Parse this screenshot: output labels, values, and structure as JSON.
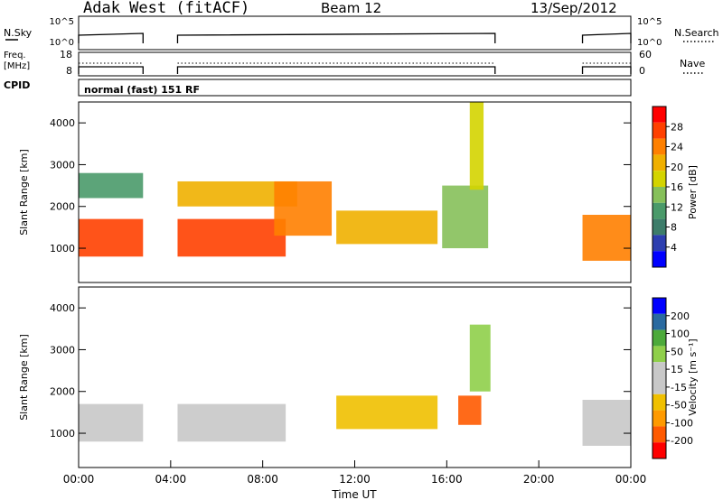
{
  "header": {
    "radar": "Adak West (fitACF)",
    "beam": "Beam 12",
    "date": "13/Sep/2012"
  },
  "status_panels": {
    "nsky_label": "N.Sky",
    "nsky_tick_top": "10^5",
    "nsky_tick_bottom": "10^0",
    "nsearch_label": "N.Search",
    "nsearch_tick_top": "10^5",
    "nsearch_tick_bottom": "10^0",
    "freq_label": "Freq.",
    "freq_unit": "[MHz]",
    "freq_tick_top": "18",
    "freq_tick_bottom": "8",
    "nave_label": "Nave",
    "nave_tick_top": "60",
    "nave_tick_bottom": "0",
    "cpid_label": "CPID",
    "cpid_value": "normal (fast) 151 RF"
  },
  "colors": {
    "power_scale": [
      "#0000ff",
      "#2d3fb0",
      "#3d7d6a",
      "#4a9a6a",
      "#86c05a",
      "#d4d400",
      "#f0b000",
      "#ff8000",
      "#ff4000",
      "#ff0000"
    ],
    "velocity_scale": [
      "#ff0000",
      "#ff5a00",
      "#ff9a00",
      "#f0c000",
      "#c8c8c8",
      "#c8c8c8",
      "#8fcf4a",
      "#4caa3a",
      "#2a6aa0",
      "#0000ff"
    ]
  },
  "chart_data": [
    {
      "type": "heatmap",
      "name": "Power",
      "ylabel": "Slant Range [km]",
      "y_ticks": [
        "1000",
        "2000",
        "3000",
        "4000"
      ],
      "colorbar_label": "Power [dB]",
      "colorbar_ticks": [
        "4",
        "8",
        "12",
        "16",
        "20",
        "24",
        "28"
      ],
      "xlim": [
        "00:00",
        "24:00"
      ],
      "ylim": [
        180,
        4500
      ],
      "bands": [
        {
          "start_h": 0.0,
          "end_h": 2.8,
          "r_lo": 800,
          "r_hi": 1700,
          "level": 28
        },
        {
          "start_h": 0.0,
          "end_h": 2.8,
          "r_lo": 2200,
          "r_hi": 2800,
          "level": 10
        },
        {
          "start_h": 4.3,
          "end_h": 9.0,
          "r_lo": 800,
          "r_hi": 1700,
          "level": 28
        },
        {
          "start_h": 4.3,
          "end_h": 9.5,
          "r_lo": 2000,
          "r_hi": 2600,
          "level": 22
        },
        {
          "start_h": 8.5,
          "end_h": 11.0,
          "r_lo": 1300,
          "r_hi": 2600,
          "level": 26
        },
        {
          "start_h": 11.2,
          "end_h": 15.6,
          "r_lo": 1100,
          "r_hi": 1900,
          "level": 20
        },
        {
          "start_h": 15.8,
          "end_h": 17.8,
          "r_lo": 1000,
          "r_hi": 2500,
          "level": 14
        },
        {
          "start_h": 17.0,
          "end_h": 17.6,
          "r_lo": 2400,
          "r_hi": 4500,
          "level": 16
        },
        {
          "start_h": 21.9,
          "end_h": 24.0,
          "r_lo": 700,
          "r_hi": 1800,
          "level": 26
        }
      ]
    },
    {
      "type": "heatmap",
      "name": "Velocity",
      "ylabel": "Slant Range [km]",
      "y_ticks": [
        "1000",
        "2000",
        "3000",
        "4000"
      ],
      "colorbar_label": "Velocity [m s⁻¹]",
      "colorbar_ticks": [
        "-200",
        "-100",
        "-50",
        "-15",
        "15",
        "50",
        "100",
        "200"
      ],
      "xlabel": "Time UT",
      "x_ticks": [
        "00:00",
        "04:00",
        "08:00",
        "12:00",
        "16:00",
        "20:00",
        "00:00"
      ],
      "xlim": [
        "00:00",
        "24:00"
      ],
      "ylim": [
        180,
        4500
      ],
      "bands": [
        {
          "start_h": 0.0,
          "end_h": 2.8,
          "r_lo": 800,
          "r_hi": 1700,
          "level": 0
        },
        {
          "start_h": 4.3,
          "end_h": 9.0,
          "r_lo": 800,
          "r_hi": 1700,
          "level": 0
        },
        {
          "start_h": 11.2,
          "end_h": 15.6,
          "r_lo": 1100,
          "r_hi": 1900,
          "level": -50
        },
        {
          "start_h": 16.5,
          "end_h": 17.5,
          "r_lo": 1200,
          "r_hi": 1900,
          "level": -200
        },
        {
          "start_h": 17.0,
          "end_h": 17.9,
          "r_lo": 2000,
          "r_hi": 3600,
          "level": 50
        },
        {
          "start_h": 21.9,
          "end_h": 24.0,
          "r_lo": 700,
          "r_hi": 1800,
          "level": 0
        }
      ]
    }
  ]
}
